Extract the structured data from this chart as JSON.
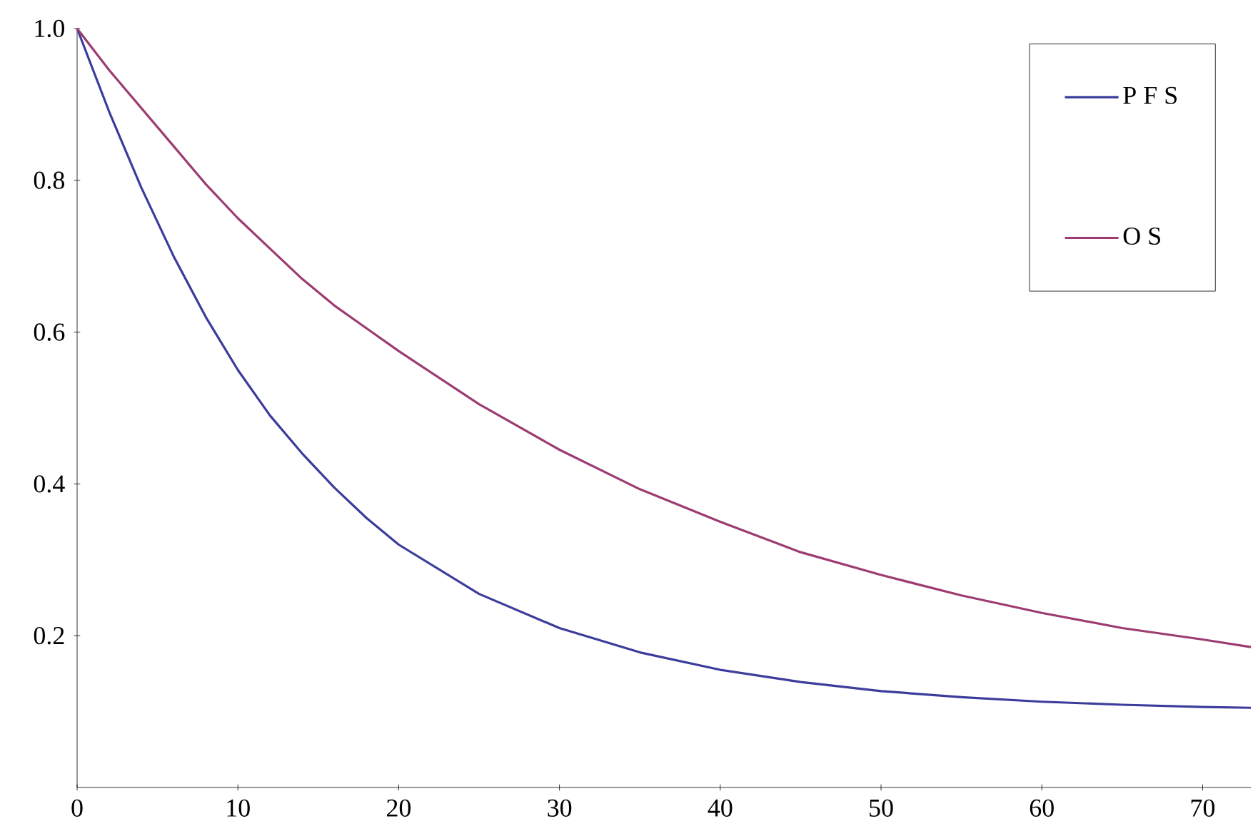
{
  "chart_data": {
    "type": "line",
    "xlim": [
      0,
      73
    ],
    "ylim": [
      0,
      1
    ],
    "xticks": [
      0,
      10,
      20,
      30,
      40,
      50,
      60,
      70
    ],
    "yticks": [
      {
        "value": 0.2,
        "label": "0.2"
      },
      {
        "value": 0.4,
        "label": "0.4"
      },
      {
        "value": 0.6,
        "label": "0.6"
      },
      {
        "value": 0.8,
        "label": "0.8"
      },
      {
        "value": 1,
        "label": "1.0"
      }
    ],
    "x": [
      0,
      2,
      4,
      6,
      8,
      10,
      12,
      14,
      16,
      18,
      20,
      25,
      30,
      35,
      40,
      45,
      50,
      55,
      60,
      65,
      70,
      73
    ],
    "series": [
      {
        "name": "P F S",
        "color": "#3c3c9c",
        "values": [
          1.0,
          0.89,
          0.79,
          0.7,
          0.62,
          0.55,
          0.49,
          0.44,
          0.395,
          0.355,
          0.32,
          0.255,
          0.21,
          0.178,
          0.155,
          0.139,
          0.127,
          0.119,
          0.113,
          0.109,
          0.106,
          0.105
        ]
      },
      {
        "name": "O S",
        "color": "#9c3c70",
        "values": [
          1.0,
          0.945,
          0.895,
          0.845,
          0.795,
          0.75,
          0.71,
          0.67,
          0.635,
          0.605,
          0.575,
          0.505,
          0.445,
          0.393,
          0.35,
          0.31,
          0.28,
          0.253,
          0.23,
          0.21,
          0.195,
          0.185
        ]
      }
    ],
    "legend": "top right",
    "marker": "none",
    "line_style": "solid",
    "grid": false
  }
}
